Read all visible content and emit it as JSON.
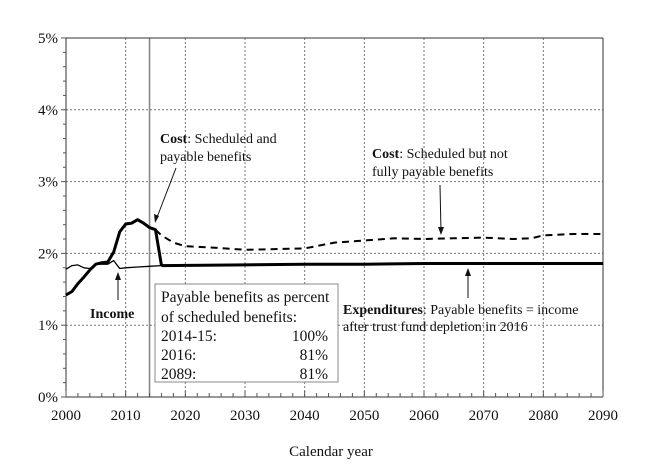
{
  "chart_data": {
    "type": "line",
    "title": "",
    "xlabel": "Calendar year",
    "ylabel": "",
    "xlim": [
      2000,
      2090
    ],
    "ylim": [
      0,
      5
    ],
    "x_ticks": [
      "2000",
      "2010",
      "2020",
      "2030",
      "2040",
      "2050",
      "2060",
      "2070",
      "2080",
      "2090"
    ],
    "y_ticks": [
      "0%",
      "1%",
      "2%",
      "3%",
      "4%",
      "5%"
    ],
    "grid": "dotted major gridlines",
    "reference_line": {
      "x": 2014,
      "color": "#888888"
    },
    "series": [
      {
        "name": "Cost: Scheduled and payable benefits",
        "style": "thick-solid",
        "points": [
          [
            2000,
            1.42
          ],
          [
            2001,
            1.47
          ],
          [
            2002,
            1.58
          ],
          [
            2003,
            1.67
          ],
          [
            2004,
            1.77
          ],
          [
            2005,
            1.85
          ],
          [
            2006,
            1.87
          ],
          [
            2007,
            1.88
          ],
          [
            2008,
            2.02
          ],
          [
            2009,
            2.3
          ],
          [
            2010,
            2.41
          ],
          [
            2011,
            2.42
          ],
          [
            2012,
            2.47
          ],
          [
            2013,
            2.42
          ],
          [
            2014,
            2.36
          ],
          [
            2015,
            2.33
          ],
          [
            2016,
            1.83
          ]
        ]
      },
      {
        "name": "Cost: Scheduled but not fully payable benefits",
        "style": "dashed",
        "points": [
          [
            2015,
            2.33
          ],
          [
            2016,
            2.25
          ],
          [
            2018,
            2.15
          ],
          [
            2020,
            2.1
          ],
          [
            2025,
            2.08
          ],
          [
            2030,
            2.05
          ],
          [
            2035,
            2.06
          ],
          [
            2040,
            2.07
          ],
          [
            2045,
            2.15
          ],
          [
            2050,
            2.18
          ],
          [
            2055,
            2.21
          ],
          [
            2060,
            2.2
          ],
          [
            2065,
            2.21
          ],
          [
            2070,
            2.22
          ],
          [
            2075,
            2.2
          ],
          [
            2078,
            2.21
          ],
          [
            2080,
            2.25
          ],
          [
            2085,
            2.27
          ],
          [
            2090,
            2.27
          ]
        ]
      },
      {
        "name": "Income",
        "style": "thin-solid",
        "points": [
          [
            2000,
            1.78
          ],
          [
            2001,
            1.83
          ],
          [
            2002,
            1.84
          ],
          [
            2003,
            1.8
          ],
          [
            2004,
            1.79
          ],
          [
            2005,
            1.85
          ],
          [
            2006,
            1.85
          ],
          [
            2007,
            1.85
          ],
          [
            2008,
            1.9
          ],
          [
            2009,
            1.79
          ],
          [
            2010,
            1.8
          ],
          [
            2012,
            1.81
          ],
          [
            2014,
            1.82
          ],
          [
            2016,
            1.83
          ]
        ]
      },
      {
        "name": "Expenditures: Payable benefits = income after trust fund depletion in 2016",
        "style": "thick-solid",
        "points": [
          [
            2016,
            1.83
          ],
          [
            2030,
            1.84
          ],
          [
            2040,
            1.85
          ],
          [
            2050,
            1.85
          ],
          [
            2060,
            1.86
          ],
          [
            2070,
            1.86
          ],
          [
            2080,
            1.86
          ],
          [
            2090,
            1.86
          ]
        ]
      }
    ],
    "annotations": {
      "cost_payable": {
        "bold": "Cost",
        "line1": ": Scheduled and",
        "line2": "payable benefits"
      },
      "cost_not_payable": {
        "bold": "Cost",
        "line1": ": Scheduled but not",
        "line2": "fully payable benefits"
      },
      "income": {
        "bold": "Income"
      },
      "expenditures": {
        "bold": "Expenditures",
        "line1": ": Payable benefits = income",
        "line2": "after trust fund depletion in 2016"
      }
    },
    "info_box": {
      "heading1": "Payable benefits as percent",
      "heading2": "of scheduled benefits:",
      "rows": [
        {
          "label": "2014-15:",
          "value": "100%"
        },
        {
          "label": "2016:",
          "value": "81%"
        },
        {
          "label": "2089:",
          "value": "81%"
        }
      ]
    }
  }
}
